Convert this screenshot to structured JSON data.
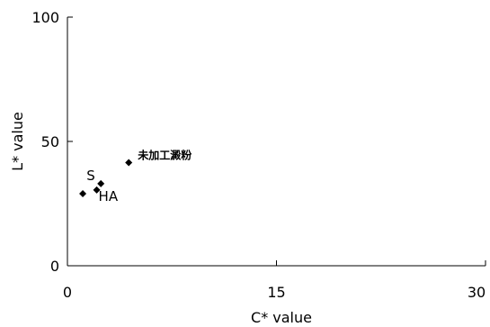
{
  "chart_data": {
    "type": "scatter",
    "title": "",
    "xlabel": "C* value",
    "ylabel": "L* value",
    "xlim": [
      0,
      30
    ],
    "ylim": [
      0,
      100
    ],
    "x_ticks": [
      "0",
      "15",
      "30"
    ],
    "y_ticks": [
      "0",
      "50",
      "100"
    ],
    "grid": false,
    "marker": "diamond",
    "marker_color": "#000000",
    "points": [
      {
        "x": 1.1,
        "y": 29,
        "label": ""
      },
      {
        "x": 2.1,
        "y": 30.5,
        "label": "HA"
      },
      {
        "x": 2.4,
        "y": 33,
        "label": "S"
      },
      {
        "x": 4.4,
        "y": 41.5,
        "label": "未加工澱粉"
      }
    ]
  }
}
